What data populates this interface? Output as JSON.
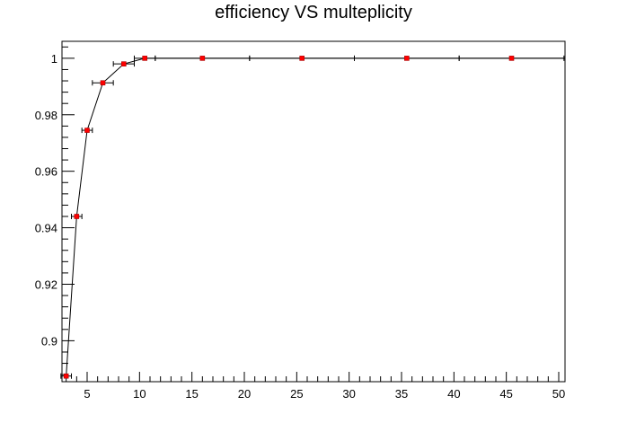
{
  "chart_data": {
    "type": "scatter",
    "title": "efficiency VS multeplicity",
    "xlabel": "",
    "ylabel": "",
    "xlim": [
      2.6,
      50.6
    ],
    "ylim": [
      0.8855,
      1.006
    ],
    "x_ticks": [
      5,
      10,
      15,
      20,
      25,
      30,
      35,
      40,
      45,
      50
    ],
    "y_ticks": [
      0.9,
      0.92,
      0.94,
      0.96,
      0.98,
      1
    ],
    "x_tick_labels": [
      "5",
      "10",
      "15",
      "20",
      "25",
      "30",
      "35",
      "40",
      "45",
      "50"
    ],
    "y_tick_labels": [
      "0.9",
      "0.92",
      "0.94",
      "0.96",
      "0.98",
      "1"
    ],
    "grid": false,
    "legend": "none",
    "series": [
      {
        "marker_color": "#ff0000",
        "line_color": "#000000",
        "points": [
          {
            "x": 3,
            "y": 0.8875,
            "xerr": 0.5
          },
          {
            "x": 4,
            "y": 0.944,
            "xerr": 0.5
          },
          {
            "x": 5,
            "y": 0.9745,
            "xerr": 0.5
          },
          {
            "x": 6.5,
            "y": 0.9913,
            "xerr": 1.0
          },
          {
            "x": 8.5,
            "y": 0.998,
            "xerr": 1.0
          },
          {
            "x": 10.5,
            "y": 1.0,
            "xerr": 1.0
          },
          {
            "x": 16,
            "y": 1.0,
            "xerr": 4.5
          },
          {
            "x": 25.5,
            "y": 1.0,
            "xerr": 5.0
          },
          {
            "x": 35.5,
            "y": 1.0,
            "xerr": 5.0
          },
          {
            "x": 45.5,
            "y": 1.0,
            "xerr": 5.0
          }
        ]
      }
    ]
  }
}
